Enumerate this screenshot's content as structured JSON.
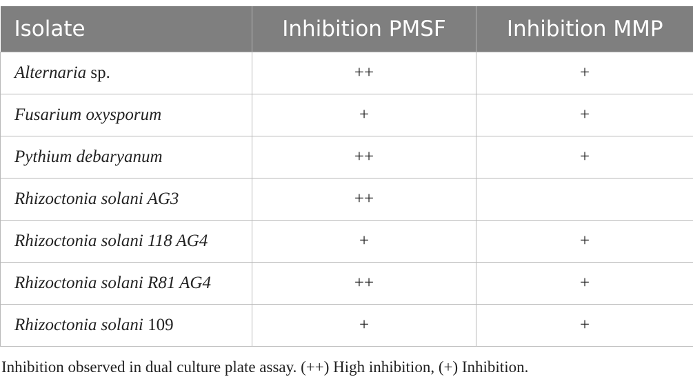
{
  "table": {
    "headers": [
      "Isolate",
      "Inhibition PMSF",
      "Inhibition MMP"
    ],
    "rows": [
      {
        "isolate_italic": "Alternaria",
        "isolate_plain": " sp.",
        "pmsf": "++",
        "mmp": "+"
      },
      {
        "isolate_italic": "Fusarium oxysporum",
        "isolate_plain": "",
        "pmsf": "+",
        "mmp": "+"
      },
      {
        "isolate_italic": "Pythium debaryanum",
        "isolate_plain": "",
        "pmsf": "++",
        "mmp": "+"
      },
      {
        "isolate_italic": "Rhizoctonia solani AG3",
        "isolate_plain": "",
        "pmsf": "++",
        "mmp": ""
      },
      {
        "isolate_italic": "Rhizoctonia solani 118 AG4",
        "isolate_plain": "",
        "pmsf": "+",
        "mmp": "+"
      },
      {
        "isolate_italic": "Rhizoctonia solani R81 AG4",
        "isolate_plain": "",
        "pmsf": "++",
        "mmp": "+"
      },
      {
        "isolate_italic": "Rhizoctonia solani",
        "isolate_plain": " 109",
        "pmsf": "+",
        "mmp": "+"
      }
    ]
  },
  "caption": "Inhibition observed in dual culture plate assay. (++) High inhibition, (+) Inhibition."
}
